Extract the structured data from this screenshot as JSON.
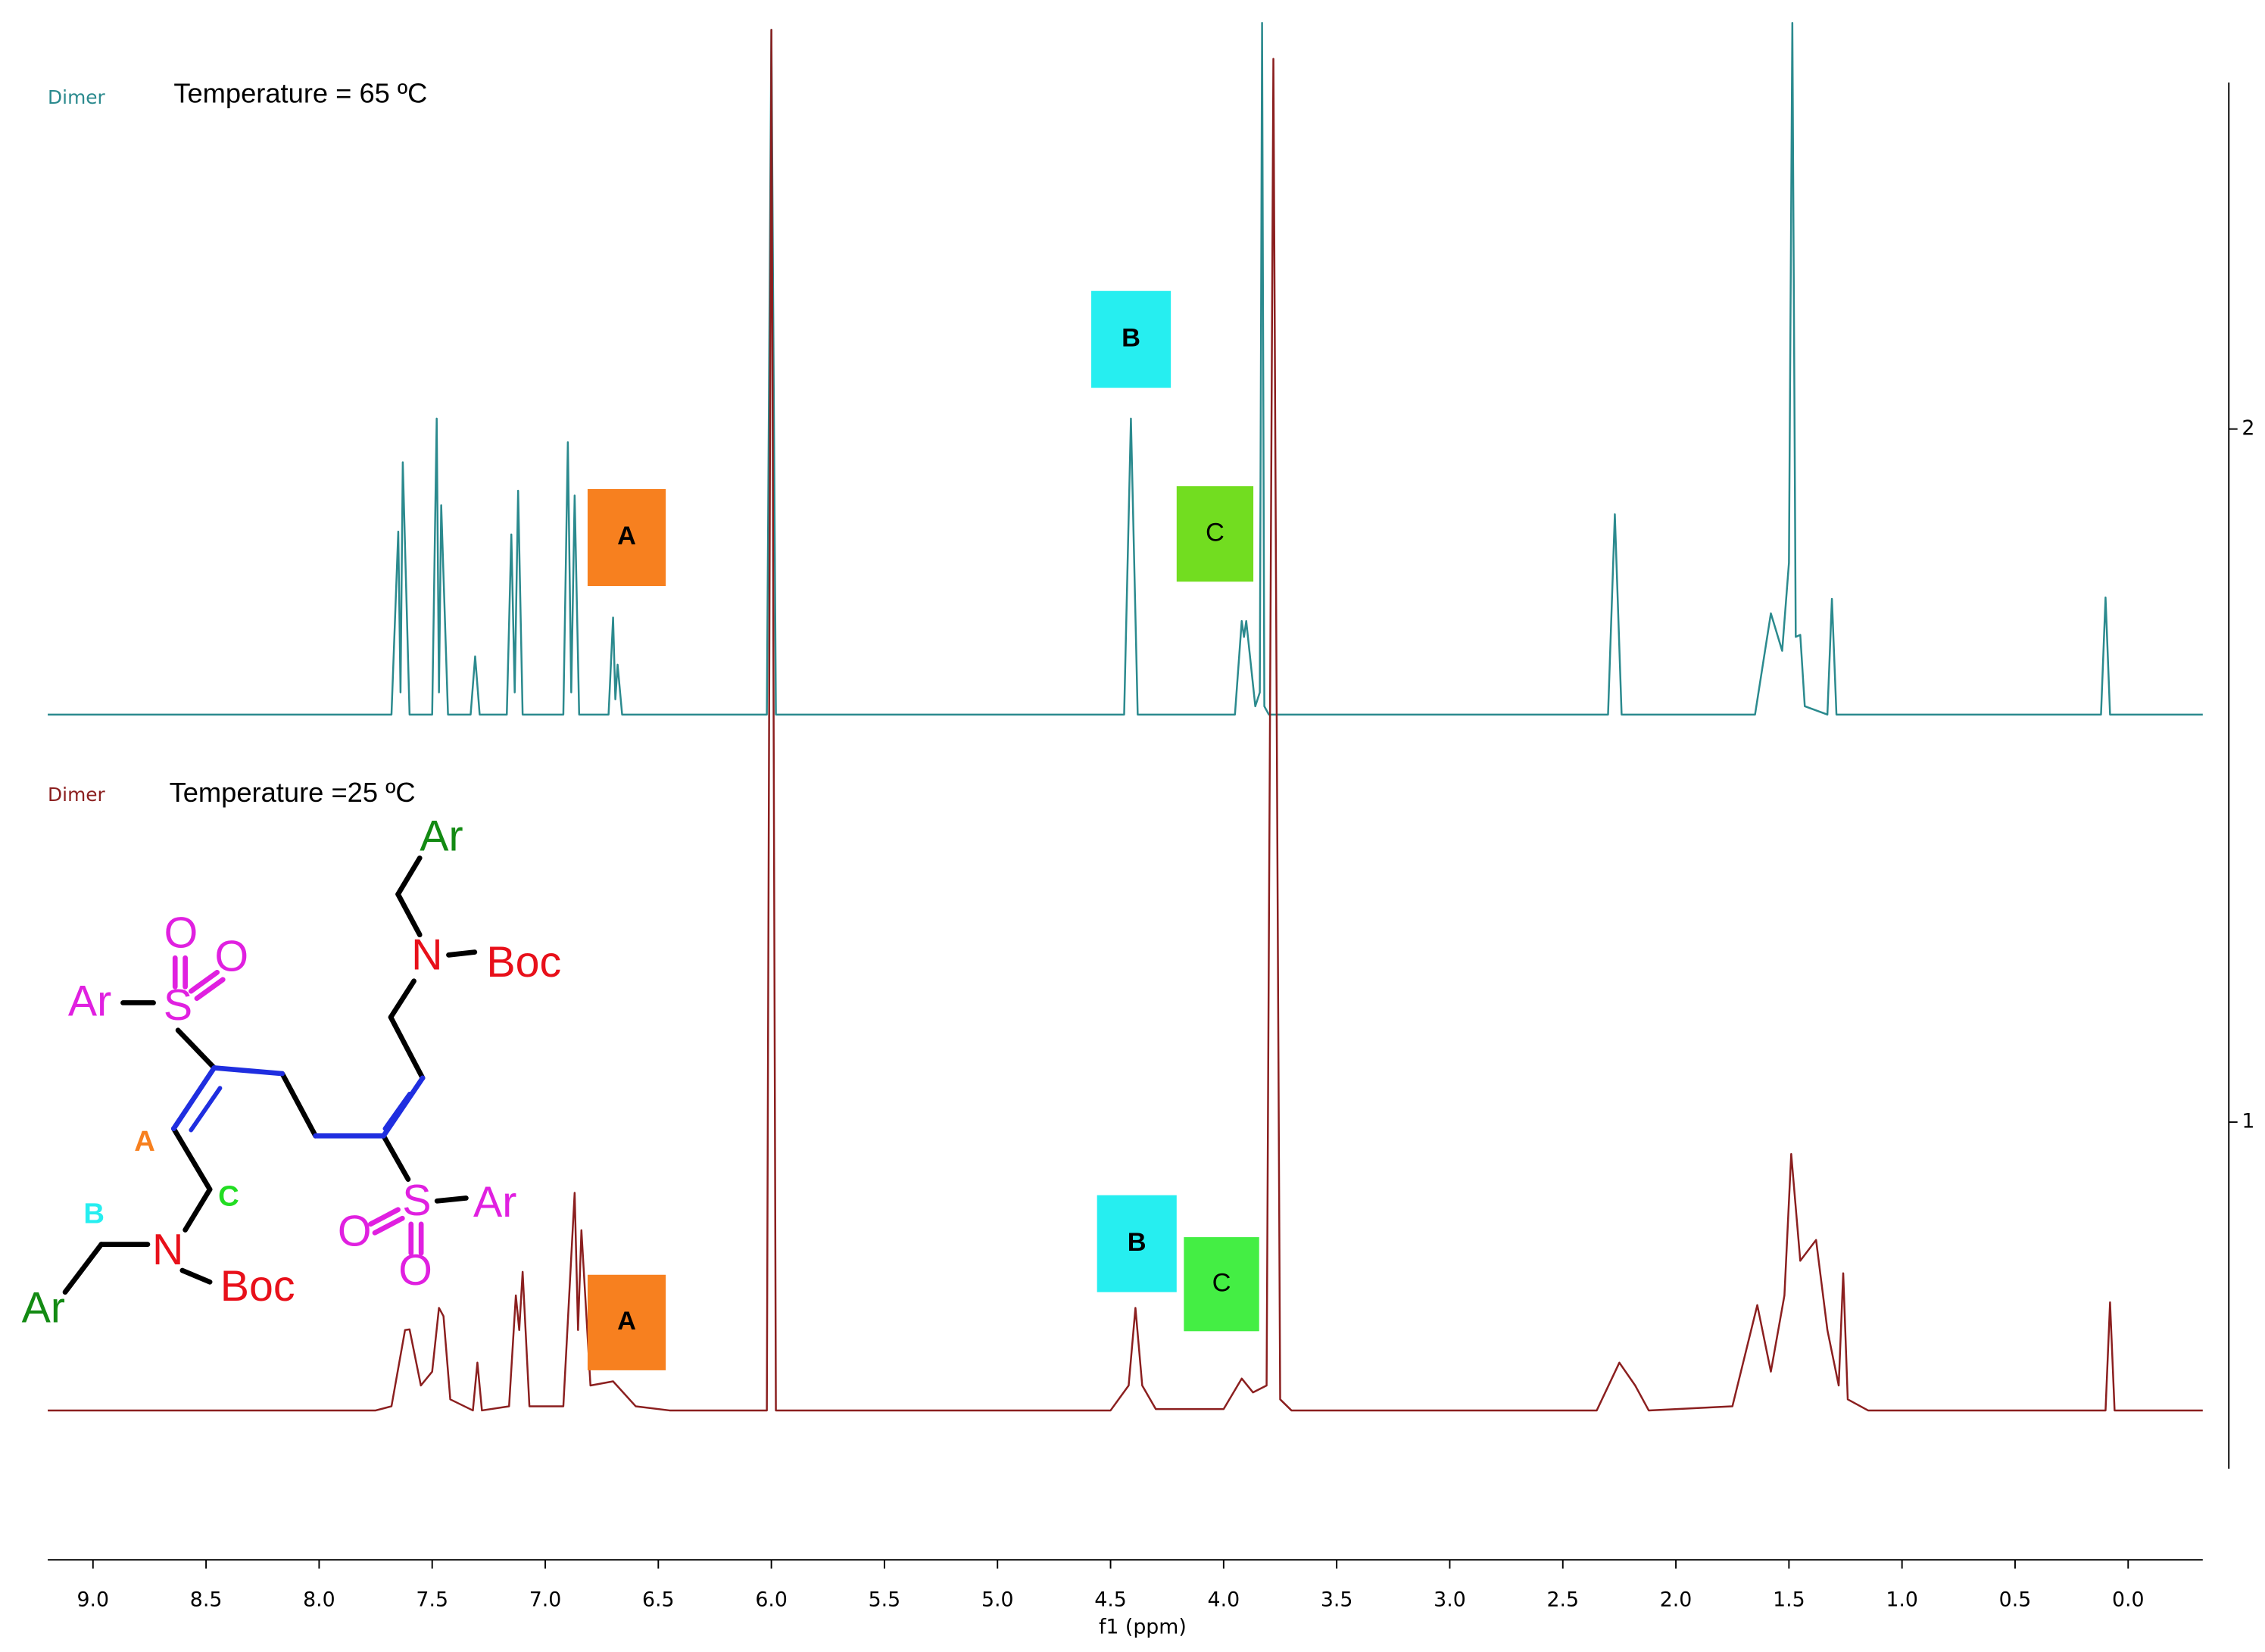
{
  "chart_data": {
    "type": "nmr",
    "xlabel": "f1 (ppm)",
    "xlim": [
      9.2,
      -0.33
    ],
    "xticks": [
      {
        "value": 9,
        "label": "9.0"
      },
      8.5,
      {
        "value": 8,
        "label": "8.0"
      },
      7.5,
      {
        "value": 7,
        "label": "7.0"
      },
      6.5,
      {
        "value": 6,
        "label": "6.0"
      },
      5.5,
      {
        "value": 5,
        "label": "5.0"
      },
      4.5,
      {
        "value": 4,
        "label": "4.0"
      },
      3.5,
      {
        "value": 3,
        "label": "3.0"
      },
      2.5,
      {
        "value": 2,
        "label": "2.0"
      },
      1.5,
      {
        "value": 1,
        "label": "1.0"
      },
      0.5,
      {
        "value": 0,
        "label": "0.0"
      }
    ],
    "y2lim": [
      0.5,
      2.5
    ],
    "y2ticks": [
      1,
      2
    ],
    "series": [
      {
        "name": "Dimer",
        "label": "Temperature = 65 ºC",
        "color": "#2b8a8e",
        "axis": "y2",
        "x": [
          9.2,
          7.68,
          7.65,
          7.64,
          7.63,
          7.6,
          7.5,
          7.48,
          7.47,
          7.46,
          7.43,
          7.33,
          7.31,
          7.29,
          7.17,
          7.15,
          7.135,
          7.12,
          7.1,
          6.92,
          6.9,
          6.885,
          6.87,
          6.85,
          6.72,
          6.7,
          6.69,
          6.68,
          6.66,
          6.02,
          6.0,
          5.98,
          4.44,
          4.41,
          4.38,
          3.95,
          3.92,
          3.91,
          3.9,
          3.86,
          3.84,
          3.83,
          3.82,
          3.8,
          2.3,
          2.27,
          2.24,
          1.65,
          1.58,
          1.53,
          1.5,
          1.485,
          1.47,
          1.45,
          1.43,
          1.33,
          1.31,
          1.29,
          0.12,
          0.1,
          0.08,
          -0.33
        ],
        "values": [
          1.588,
          1.588,
          1.852,
          1.62,
          1.952,
          1.588,
          1.588,
          2.015,
          1.62,
          1.89,
          1.588,
          1.588,
          1.672,
          1.588,
          1.588,
          1.848,
          1.62,
          1.911,
          1.588,
          1.588,
          1.981,
          1.62,
          1.904,
          1.588,
          1.588,
          1.728,
          1.61,
          1.66,
          1.588,
          1.588,
          2.576,
          1.588,
          1.588,
          2.015,
          1.588,
          1.588,
          1.723,
          1.7,
          1.723,
          1.6,
          1.62,
          2.586,
          1.6,
          1.588,
          1.588,
          1.877,
          1.588,
          1.588,
          1.734,
          1.68,
          1.807,
          2.586,
          1.7,
          1.703,
          1.6,
          1.588,
          1.755,
          1.588,
          1.588,
          1.757,
          1.588,
          1.588
        ]
      },
      {
        "name": "Dimer",
        "label": "Temperature =25 ºC",
        "color": "#8b1f1f",
        "axis": "y2",
        "x": [
          9.2,
          7.75,
          7.68,
          7.62,
          7.6,
          7.55,
          7.5,
          7.47,
          7.45,
          7.42,
          7.32,
          7.3,
          7.28,
          7.16,
          7.13,
          7.115,
          7.1,
          7.07,
          6.92,
          6.87,
          6.855,
          6.84,
          6.8,
          6.7,
          6.6,
          6.45,
          6.02,
          6.0,
          5.98,
          4.5,
          4.42,
          4.39,
          4.36,
          4.3,
          4.0,
          3.92,
          3.87,
          3.81,
          3.78,
          3.75,
          3.7,
          2.35,
          2.25,
          2.18,
          2.12,
          1.75,
          1.64,
          1.58,
          1.52,
          1.49,
          1.45,
          1.38,
          1.33,
          1.28,
          1.26,
          1.24,
          1.15,
          0.1,
          0.08,
          0.06,
          -0.33
        ],
        "values": [
          0.584,
          0.584,
          0.59,
          0.7,
          0.701,
          0.62,
          0.64,
          0.732,
          0.72,
          0.6,
          0.584,
          0.653,
          0.584,
          0.59,
          0.75,
          0.7,
          0.784,
          0.59,
          0.59,
          0.898,
          0.7,
          0.844,
          0.62,
          0.626,
          0.59,
          0.584,
          0.584,
          2.576,
          0.584,
          0.584,
          0.62,
          0.732,
          0.62,
          0.586,
          0.586,
          0.63,
          0.61,
          0.62,
          2.534,
          0.6,
          0.584,
          0.584,
          0.653,
          0.62,
          0.584,
          0.59,
          0.736,
          0.64,
          0.75,
          0.954,
          0.8,
          0.83,
          0.7,
          0.62,
          0.782,
          0.6,
          0.584,
          0.584,
          0.74,
          0.584,
          0.584
        ]
      }
    ],
    "annotations": [
      {
        "text": "A",
        "color": "#f7801f"
      },
      {
        "text": "B",
        "color": "#26eef0"
      },
      {
        "text": "C",
        "color": "#72dd20"
      },
      {
        "text": "A",
        "color": "#f7801f"
      },
      {
        "text": "B",
        "color": "#26eef0"
      },
      {
        "text": "C",
        "color": "#44ee44"
      }
    ],
    "structure": [
      "Ar",
      "N",
      "Boc",
      "O",
      "O",
      "Ar",
      "S",
      "A",
      "C",
      "B",
      "N",
      "Boc",
      "Ar",
      "S",
      "Ar",
      "O",
      "O"
    ]
  }
}
